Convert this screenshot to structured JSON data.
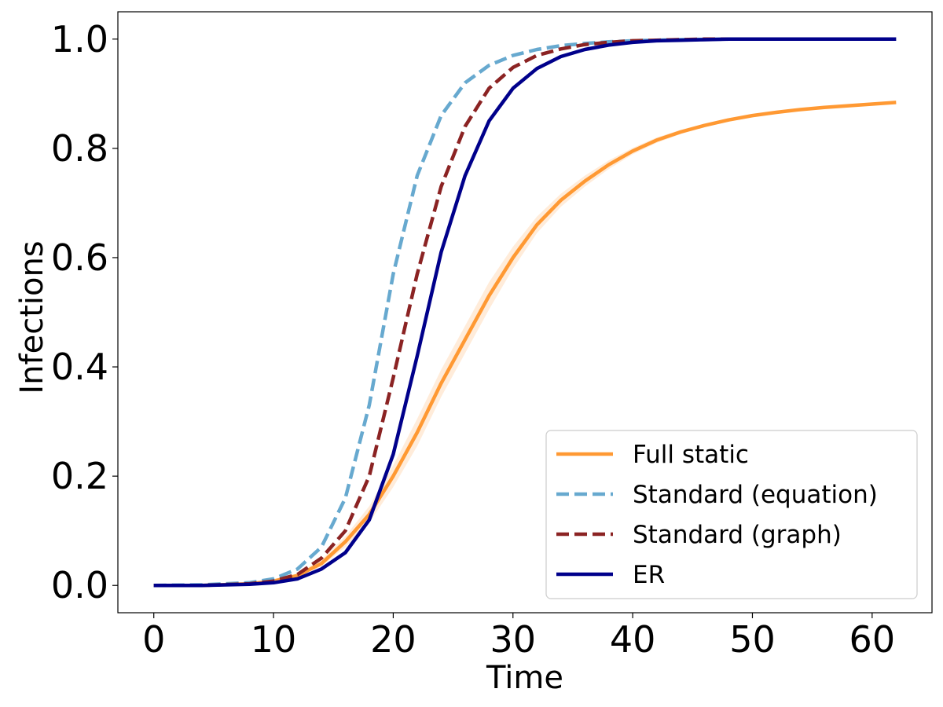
{
  "chart_data": {
    "type": "line",
    "xlabel": "Time",
    "ylabel": "Infections",
    "xlim": [
      -3,
      65
    ],
    "ylim": [
      -0.05,
      1.05
    ],
    "xticks": [
      "0",
      "10",
      "20",
      "30",
      "40",
      "50",
      "60"
    ],
    "yticks": [
      "0.0",
      "0.2",
      "0.4",
      "0.6",
      "0.8",
      "1.0"
    ],
    "legend_position": "lower-right",
    "grid": false,
    "x": [
      0,
      4,
      8,
      10,
      12,
      14,
      16,
      18,
      20,
      22,
      24,
      26,
      28,
      30,
      32,
      34,
      36,
      38,
      40,
      42,
      44,
      46,
      48,
      50,
      52,
      54,
      56,
      58,
      60,
      62
    ],
    "series": [
      {
        "name": "Full static",
        "color": "#ff9933",
        "style": "solid",
        "band_color": "#ffe0c2",
        "values": [
          0.0,
          0.0,
          0.003,
          0.008,
          0.018,
          0.04,
          0.08,
          0.13,
          0.2,
          0.28,
          0.37,
          0.45,
          0.53,
          0.6,
          0.66,
          0.705,
          0.74,
          0.77,
          0.795,
          0.815,
          0.83,
          0.842,
          0.852,
          0.86,
          0.866,
          0.871,
          0.875,
          0.878,
          0.881,
          0.884
        ],
        "band_lower": [
          0.0,
          0.0,
          0.002,
          0.006,
          0.015,
          0.035,
          0.07,
          0.115,
          0.18,
          0.255,
          0.345,
          0.425,
          0.505,
          0.58,
          0.645,
          0.693,
          0.73,
          0.762,
          0.789,
          0.81,
          0.826,
          0.839,
          0.849,
          0.857,
          0.864,
          0.869,
          0.873,
          0.876,
          0.879,
          0.882
        ],
        "band_upper": [
          0.0,
          0.0,
          0.004,
          0.01,
          0.022,
          0.047,
          0.09,
          0.145,
          0.22,
          0.305,
          0.395,
          0.475,
          0.555,
          0.62,
          0.675,
          0.717,
          0.75,
          0.778,
          0.801,
          0.82,
          0.834,
          0.845,
          0.855,
          0.863,
          0.868,
          0.873,
          0.877,
          0.88,
          0.883,
          0.886
        ]
      },
      {
        "name": "Standard (equation)",
        "color": "#67a9cf",
        "style": "dashed",
        "values": [
          0.0,
          0.001,
          0.005,
          0.012,
          0.03,
          0.07,
          0.16,
          0.33,
          0.57,
          0.75,
          0.86,
          0.92,
          0.952,
          0.97,
          0.981,
          0.988,
          0.992,
          0.995,
          0.997,
          0.998,
          0.999,
          0.9995,
          1.0,
          1.0,
          1.0,
          1.0,
          1.0,
          1.0,
          1.0,
          1.0
        ]
      },
      {
        "name": "Standard (graph)",
        "color": "#8b2323",
        "style": "dashed",
        "values": [
          0.0,
          0.0,
          0.003,
          0.008,
          0.02,
          0.05,
          0.1,
          0.2,
          0.38,
          0.57,
          0.73,
          0.84,
          0.91,
          0.948,
          0.97,
          0.982,
          0.99,
          0.994,
          0.997,
          0.998,
          0.999,
          1.0,
          1.0,
          1.0,
          1.0,
          1.0,
          1.0,
          1.0,
          1.0,
          1.0
        ]
      },
      {
        "name": "ER",
        "color": "#00008b",
        "style": "solid",
        "values": [
          0.0,
          0.0,
          0.002,
          0.005,
          0.012,
          0.03,
          0.06,
          0.12,
          0.24,
          0.42,
          0.61,
          0.75,
          0.85,
          0.91,
          0.946,
          0.968,
          0.981,
          0.989,
          0.994,
          0.997,
          0.998,
          0.999,
          1.0,
          1.0,
          1.0,
          1.0,
          1.0,
          1.0,
          1.0,
          1.0
        ]
      }
    ]
  }
}
